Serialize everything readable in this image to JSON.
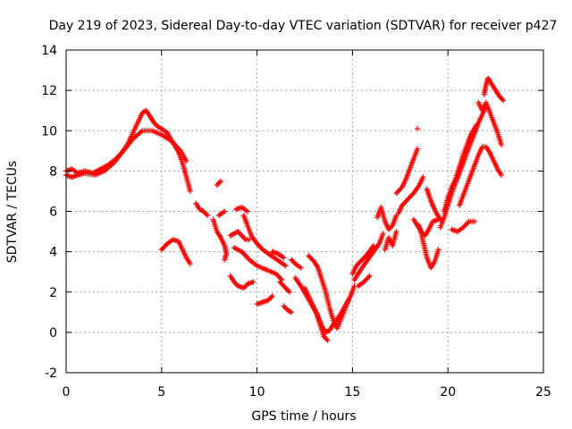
{
  "chart_data": {
    "type": "scatter",
    "title": "Day 219 of 2023, Sidereal Day-to-day VTEC variation (SDTVAR) for receiver p427",
    "xlabel": "GPS time / hours",
    "ylabel": "SDTVAR / TECUs",
    "xlim": [
      0,
      25
    ],
    "ylim": [
      -2,
      14
    ],
    "xticks": [
      0,
      5,
      10,
      15,
      20,
      25
    ],
    "yticks": [
      -2,
      0,
      2,
      4,
      6,
      8,
      10,
      12,
      14
    ],
    "grid": true,
    "marker": "+",
    "color": "#ff0000",
    "series": [
      {
        "segments": [
          [
            [
              0.0,
              8.0
            ],
            [
              0.3,
              8.1
            ],
            [
              0.6,
              7.9
            ],
            [
              1.0,
              8.0
            ],
            [
              1.4,
              7.9
            ],
            [
              1.8,
              8.1
            ],
            [
              2.2,
              8.3
            ],
            [
              2.6,
              8.6
            ],
            [
              2.9,
              8.9
            ],
            [
              3.2,
              9.3
            ],
            [
              3.5,
              9.9
            ],
            [
              3.8,
              10.5
            ],
            [
              4.0,
              10.9
            ],
            [
              4.2,
              11.0
            ],
            [
              4.4,
              10.7
            ],
            [
              4.6,
              10.4
            ],
            [
              4.8,
              10.2
            ],
            [
              5.0,
              10.1
            ],
            [
              5.3,
              9.9
            ],
            [
              5.6,
              9.4
            ],
            [
              5.9,
              8.9
            ],
            [
              6.1,
              8.4
            ],
            [
              6.3,
              7.7
            ],
            [
              6.5,
              7.0
            ]
          ],
          [
            [
              0.0,
              7.8
            ],
            [
              0.3,
              7.7
            ],
            [
              0.6,
              7.8
            ],
            [
              1.0,
              7.9
            ],
            [
              1.5,
              7.8
            ],
            [
              2.0,
              8.0
            ],
            [
              2.5,
              8.4
            ],
            [
              3.0,
              9.0
            ],
            [
              3.5,
              9.6
            ],
            [
              4.0,
              10.0
            ],
            [
              4.5,
              10.0
            ],
            [
              5.0,
              9.8
            ],
            [
              5.5,
              9.5
            ],
            [
              6.0,
              9.0
            ],
            [
              6.3,
              8.5
            ]
          ],
          [
            [
              5.0,
              4.1
            ],
            [
              5.3,
              4.4
            ],
            [
              5.6,
              4.6
            ],
            [
              5.9,
              4.5
            ],
            [
              6.1,
              4.1
            ],
            [
              6.3,
              3.7
            ],
            [
              6.5,
              3.4
            ]
          ],
          [
            [
              6.8,
              6.4
            ],
            [
              7.0,
              6.1
            ],
            [
              7.2,
              6.0
            ],
            [
              7.4,
              5.8
            ]
          ],
          [
            [
              7.9,
              7.3
            ],
            [
              8.1,
              7.5
            ]
          ],
          [
            [
              7.7,
              5.6
            ],
            [
              7.9,
              5.0
            ],
            [
              8.1,
              4.7
            ],
            [
              8.3,
              4.3
            ],
            [
              8.4,
              3.9
            ],
            [
              8.3,
              3.6
            ]
          ],
          [
            [
              8.0,
              5.8
            ],
            [
              8.3,
              6.0
            ]
          ],
          [
            [
              8.6,
              4.8
            ],
            [
              8.8,
              4.9
            ],
            [
              9.0,
              5.0
            ],
            [
              9.2,
              4.8
            ],
            [
              9.4,
              4.6
            ],
            [
              9.6,
              4.6
            ]
          ],
          [
            [
              8.9,
              6.1
            ],
            [
              9.2,
              6.2
            ],
            [
              9.5,
              6.0
            ]
          ],
          [
            [
              9.3,
              5.8
            ],
            [
              9.5,
              5.3
            ],
            [
              9.7,
              4.8
            ],
            [
              10.0,
              4.4
            ],
            [
              10.3,
              4.1
            ],
            [
              10.6,
              3.9
            ],
            [
              10.9,
              3.7
            ],
            [
              11.2,
              3.5
            ],
            [
              11.5,
              3.3
            ]
          ],
          [
            [
              8.8,
              4.2
            ],
            [
              9.2,
              4.0
            ],
            [
              9.6,
              3.6
            ],
            [
              10.0,
              3.3
            ],
            [
              10.5,
              3.1
            ],
            [
              11.0,
              2.9
            ],
            [
              11.3,
              2.6
            ]
          ],
          [
            [
              8.6,
              2.8
            ],
            [
              8.8,
              2.5
            ],
            [
              9.0,
              2.3
            ],
            [
              9.3,
              2.2
            ],
            [
              9.5,
              2.4
            ],
            [
              9.8,
              2.5
            ]
          ],
          [
            [
              10.0,
              1.4
            ],
            [
              10.3,
              1.5
            ],
            [
              10.6,
              1.6
            ],
            [
              10.8,
              1.8
            ]
          ],
          [
            [
              10.8,
              4.0
            ],
            [
              11.1,
              3.9
            ],
            [
              11.4,
              3.7
            ]
          ],
          [
            [
              11.2,
              2.5
            ],
            [
              11.5,
              2.2
            ],
            [
              11.7,
              2.0
            ]
          ],
          [
            [
              11.4,
              1.3
            ],
            [
              11.6,
              1.1
            ],
            [
              11.8,
              1.0
            ]
          ],
          [
            [
              11.8,
              3.6
            ],
            [
              12.0,
              3.4
            ],
            [
              12.3,
              3.2
            ]
          ],
          [
            [
              12.0,
              2.7
            ],
            [
              12.3,
              2.3
            ],
            [
              12.6,
              1.8
            ],
            [
              12.9,
              1.3
            ],
            [
              13.2,
              0.8
            ],
            [
              13.4,
              0.3
            ],
            [
              13.6,
              0.0
            ],
            [
              13.8,
              0.1
            ],
            [
              14.0,
              0.4
            ],
            [
              14.3,
              0.8
            ],
            [
              14.6,
              1.3
            ],
            [
              14.9,
              1.8
            ],
            [
              15.1,
              2.3
            ]
          ],
          [
            [
              12.5,
              2.2
            ],
            [
              12.8,
              1.6
            ],
            [
              13.1,
              1.0
            ],
            [
              13.3,
              0.4
            ],
            [
              13.5,
              -0.2
            ],
            [
              13.7,
              -0.4
            ]
          ],
          [
            [
              12.7,
              3.8
            ],
            [
              13.0,
              3.5
            ],
            [
              13.2,
              3.2
            ],
            [
              13.4,
              2.6
            ],
            [
              13.6,
              2.0
            ],
            [
              13.8,
              1.2
            ],
            [
              14.0,
              0.6
            ],
            [
              14.2,
              0.2
            ],
            [
              14.5,
              0.9
            ],
            [
              14.8,
              1.6
            ]
          ],
          [
            [
              15.1,
              2.6
            ],
            [
              15.3,
              2.9
            ],
            [
              15.5,
              3.2
            ],
            [
              15.8,
              3.6
            ],
            [
              16.1,
              4.0
            ],
            [
              16.4,
              4.4
            ],
            [
              16.6,
              4.9
            ]
          ],
          [
            [
              15.0,
              2.9
            ],
            [
              15.2,
              3.3
            ],
            [
              15.5,
              3.6
            ],
            [
              15.8,
              3.9
            ],
            [
              16.1,
              4.3
            ]
          ],
          [
            [
              15.3,
              2.3
            ],
            [
              15.6,
              2.5
            ],
            [
              15.9,
              2.8
            ]
          ],
          [
            [
              16.3,
              5.7
            ],
            [
              16.5,
              6.2
            ],
            [
              16.7,
              5.5
            ],
            [
              16.9,
              5.1
            ],
            [
              17.1,
              5.3
            ],
            [
              17.3,
              5.8
            ]
          ],
          [
            [
              16.7,
              4.1
            ],
            [
              16.9,
              4.7
            ],
            [
              17.1,
              4.3
            ],
            [
              17.3,
              5.0
            ]
          ],
          [
            [
              17.3,
              6.9
            ],
            [
              17.6,
              7.2
            ],
            [
              17.8,
              7.6
            ],
            [
              18.0,
              8.1
            ],
            [
              18.2,
              8.6
            ],
            [
              18.4,
              9.1
            ]
          ],
          [
            [
              17.4,
              5.9
            ],
            [
              17.6,
              6.3
            ],
            [
              17.9,
              6.6
            ],
            [
              18.2,
              6.9
            ],
            [
              18.5,
              7.3
            ],
            [
              18.7,
              7.7
            ]
          ],
          [
            [
              18.2,
              5.6
            ],
            [
              18.4,
              5.3
            ],
            [
              18.6,
              5.0
            ],
            [
              18.8,
              4.8
            ],
            [
              19.0,
              5.1
            ],
            [
              19.2,
              5.5
            ],
            [
              19.5,
              5.6
            ]
          ],
          [
            [
              18.5,
              5.3
            ],
            [
              18.7,
              4.5
            ],
            [
              18.9,
              3.7
            ],
            [
              19.1,
              3.2
            ],
            [
              19.3,
              3.5
            ],
            [
              19.5,
              4.1
            ]
          ],
          [
            [
              18.9,
              7.1
            ],
            [
              19.0,
              6.8
            ],
            [
              19.2,
              6.3
            ],
            [
              19.4,
              5.9
            ],
            [
              19.6,
              5.6
            ]
          ],
          [
            [
              19.6,
              5.2
            ],
            [
              19.8,
              5.7
            ],
            [
              20.0,
              6.3
            ],
            [
              20.2,
              6.9
            ],
            [
              20.4,
              7.4
            ],
            [
              20.6,
              7.9
            ],
            [
              20.8,
              8.4
            ],
            [
              21.0,
              8.9
            ],
            [
              21.2,
              9.4
            ],
            [
              21.4,
              9.9
            ],
            [
              21.6,
              10.4
            ],
            [
              21.8,
              10.8
            ],
            [
              22.0,
              11.2
            ]
          ],
          [
            [
              19.8,
              6.0
            ],
            [
              20.0,
              6.7
            ],
            [
              20.2,
              7.2
            ],
            [
              20.4,
              7.6
            ],
            [
              20.6,
              8.2
            ],
            [
              20.8,
              8.8
            ],
            [
              21.0,
              9.3
            ],
            [
              21.2,
              9.8
            ],
            [
              21.5,
              10.3
            ]
          ],
          [
            [
              20.2,
              5.1
            ],
            [
              20.5,
              5.0
            ],
            [
              20.8,
              5.2
            ],
            [
              21.1,
              5.5
            ],
            [
              21.4,
              5.5
            ]
          ],
          [
            [
              20.6,
              6.3
            ],
            [
              20.8,
              6.8
            ],
            [
              21.0,
              7.3
            ],
            [
              21.2,
              7.8
            ],
            [
              21.4,
              8.3
            ],
            [
              21.6,
              8.8
            ],
            [
              21.8,
              9.2
            ],
            [
              22.0,
              9.2
            ],
            [
              22.2,
              8.9
            ],
            [
              22.4,
              8.5
            ],
            [
              22.6,
              8.1
            ],
            [
              22.8,
              7.8
            ]
          ],
          [
            [
              21.6,
              11.4
            ],
            [
              21.8,
              11.0
            ],
            [
              22.0,
              11.4
            ],
            [
              22.2,
              10.9
            ],
            [
              22.4,
              10.4
            ],
            [
              22.6,
              9.9
            ],
            [
              22.8,
              9.3
            ]
          ],
          [
            [
              21.9,
              11.8
            ],
            [
              22.0,
              12.3
            ],
            [
              22.1,
              12.6
            ],
            [
              22.3,
              12.3
            ],
            [
              22.5,
              12.0
            ],
            [
              22.7,
              11.7
            ],
            [
              22.9,
              11.5
            ]
          ]
        ]
      }
    ],
    "outliers": [
      [
        18.4,
        10.1
      ]
    ]
  }
}
